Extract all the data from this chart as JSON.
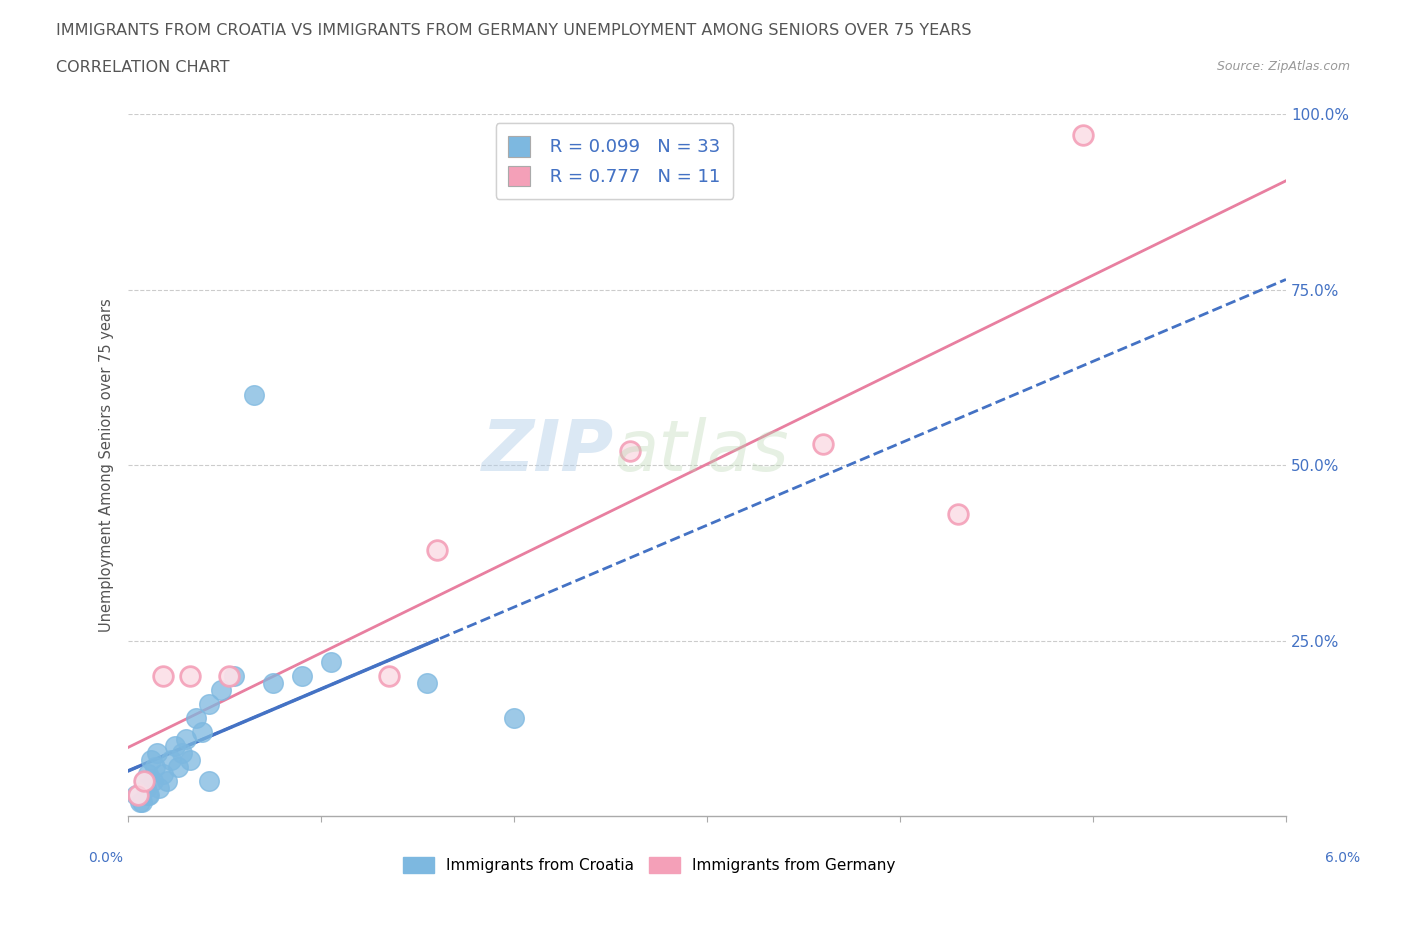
{
  "title_line1": "IMMIGRANTS FROM CROATIA VS IMMIGRANTS FROM GERMANY UNEMPLOYMENT AMONG SENIORS OVER 75 YEARS",
  "title_line2": "CORRELATION CHART",
  "source_text": "Source: ZipAtlas.com",
  "ylabel": "Unemployment Among Seniors over 75 years",
  "xlim": [
    0.0,
    6.0
  ],
  "ylim": [
    0.0,
    100.0
  ],
  "croatia_color": "#7db8e0",
  "germany_color": "#f4a0b8",
  "croatia_line_color": "#4472c4",
  "germany_line_color": "#e87fa0",
  "croatia_R": 0.099,
  "croatia_N": 33,
  "germany_R": 0.777,
  "germany_N": 11,
  "legend_color": "#4472c4",
  "watermark_zip": "ZIP",
  "watermark_atlas": "atlas",
  "background_color": "#ffffff",
  "grid_color": "#cccccc",
  "croatia_x": [
    0.04,
    0.06,
    0.08,
    0.09,
    0.1,
    0.11,
    0.12,
    0.13,
    0.14,
    0.15,
    0.16,
    0.18,
    0.2,
    0.22,
    0.24,
    0.26,
    0.28,
    0.3,
    0.32,
    0.35,
    0.38,
    0.42,
    0.48,
    0.55,
    0.65,
    0.75,
    0.9,
    1.05,
    1.55,
    2.0,
    0.07,
    0.1,
    0.42
  ],
  "croatia_y": [
    3.0,
    2.0,
    5.0,
    4.0,
    6.0,
    3.0,
    8.0,
    5.0,
    7.0,
    9.0,
    4.0,
    6.0,
    5.0,
    8.0,
    10.0,
    7.0,
    9.0,
    11.0,
    8.0,
    14.0,
    12.0,
    16.0,
    18.0,
    20.0,
    60.0,
    19.0,
    20.0,
    22.0,
    19.0,
    14.0,
    2.0,
    3.0,
    5.0
  ],
  "germany_x": [
    0.05,
    0.08,
    0.18,
    0.32,
    0.52,
    1.35,
    1.6,
    2.6,
    3.6,
    4.3,
    4.95
  ],
  "germany_y": [
    3.0,
    5.0,
    20.0,
    20.0,
    20.0,
    20.0,
    38.0,
    52.0,
    53.0,
    43.0,
    97.0
  ]
}
